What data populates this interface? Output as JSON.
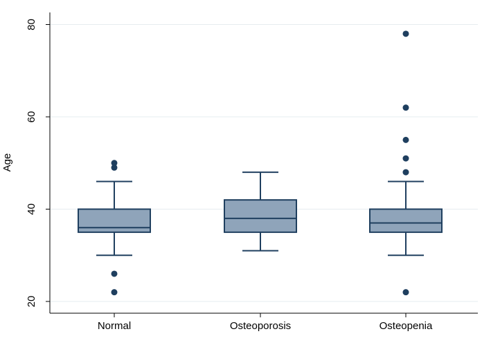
{
  "chart_data": {
    "type": "boxplot",
    "title": "",
    "xlabel": "",
    "ylabel": "Age",
    "ylim": [
      18,
      83
    ],
    "yticks": [
      20,
      40,
      60,
      80
    ],
    "ytick_labels": [
      "20",
      "40",
      "60",
      "80"
    ],
    "grid": true,
    "categories": [
      "Normal",
      "Osteoporosis",
      "Osteopenia"
    ],
    "boxes": [
      {
        "name": "Normal",
        "whisker_low": 30,
        "q1": 35,
        "median": 36,
        "q3": 40,
        "whisker_high": 46,
        "outliers": [
          22,
          26,
          49,
          50
        ]
      },
      {
        "name": "Osteoporosis",
        "whisker_low": 31,
        "q1": 35,
        "median": 38,
        "q3": 42,
        "whisker_high": 48,
        "outliers": []
      },
      {
        "name": "Osteopenia",
        "whisker_low": 30,
        "q1": 35,
        "median": 37,
        "q3": 40,
        "whisker_high": 46,
        "outliers": [
          22,
          48,
          51,
          55,
          62,
          78
        ]
      }
    ],
    "colors": {
      "box_fill": "#8fa4ba",
      "box_stroke": "#1f3f5f",
      "outlier": "#1f3f5f",
      "grid": "#e6ecef",
      "axis": "#000000"
    }
  }
}
